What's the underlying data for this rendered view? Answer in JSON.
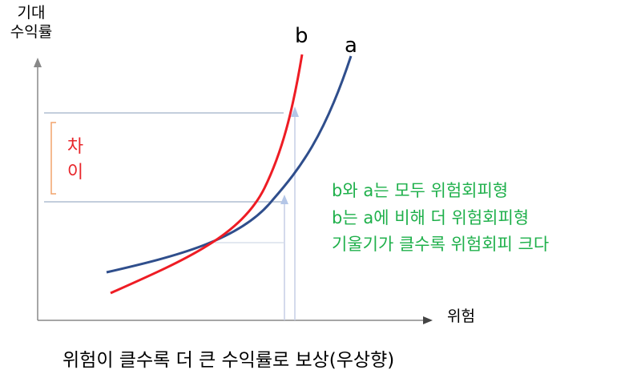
{
  "axes": {
    "y_label_line1": "기대",
    "y_label_line2": "수익률",
    "x_label": "위험"
  },
  "curves": {
    "b_label": "b",
    "a_label": "a",
    "b_color": "#ee1c24",
    "a_color": "#2f4e8c"
  },
  "difference": {
    "char1": "차",
    "char2": "이",
    "color": "#e8262b",
    "bracket_color": "#f2a36b"
  },
  "notes": [
    "b와 a는 모두 위험회피형",
    "b는 a에 비해 더 위험회피형",
    "기울기가 클수록 위험회피 크다"
  ],
  "caption": "위험이 클수록 더 큰 수익률로 보상(우상향)"
}
